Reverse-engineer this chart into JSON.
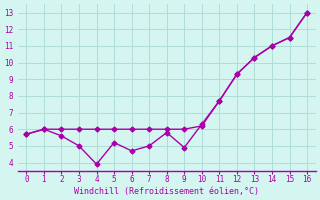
{
  "line1_x": [
    0,
    1,
    2,
    3,
    4,
    5,
    6,
    7,
    8,
    9,
    10,
    11,
    12,
    13,
    14,
    15,
    16
  ],
  "line1_y": [
    5.7,
    6.0,
    6.0,
    6.0,
    6.0,
    6.0,
    6.0,
    6.0,
    6.0,
    6.0,
    6.2,
    7.7,
    9.3,
    10.3,
    11.0,
    11.5,
    13.0
  ],
  "line2_x": [
    0,
    1,
    2,
    3,
    4,
    5,
    6,
    7,
    8,
    9,
    10,
    11,
    12,
    13,
    14,
    15,
    16
  ],
  "line2_y": [
    5.7,
    6.0,
    5.6,
    5.0,
    3.9,
    5.2,
    4.7,
    5.0,
    5.8,
    4.9,
    6.3,
    7.7,
    9.3,
    10.3,
    11.0,
    11.5,
    13.0
  ],
  "line_color": "#aa00aa",
  "marker": "D",
  "markersize": 2.5,
  "linewidth": 1.0,
  "xlabel": "Windchill (Refroidissement éolien,°C)",
  "xlim": [
    -0.5,
    16.5
  ],
  "ylim": [
    3.5,
    13.5
  ],
  "xticks": [
    0,
    1,
    2,
    3,
    4,
    5,
    6,
    7,
    8,
    9,
    10,
    11,
    12,
    13,
    14,
    15,
    16
  ],
  "yticks": [
    4,
    5,
    6,
    7,
    8,
    9,
    10,
    11,
    12,
    13
  ],
  "bg_color": "#d5f5f0",
  "grid_color": "#b0ddd8",
  "tick_color": "#aa00aa",
  "spine_color": "#aa00aa"
}
